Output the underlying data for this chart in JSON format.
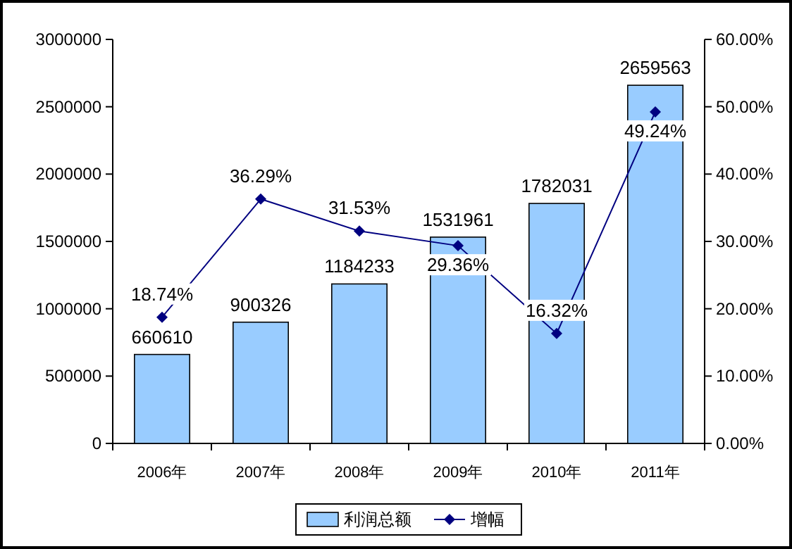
{
  "chart_data": {
    "type": "bar",
    "categories": [
      "2006年",
      "2007年",
      "2008年",
      "2009年",
      "2010年",
      "2011年"
    ],
    "series": [
      {
        "name": "利润总额",
        "color": "#99ccff",
        "values": [
          660610,
          900326,
          1184233,
          1531961,
          1782031,
          2659563
        ]
      },
      {
        "name": "增幅",
        "type": "line",
        "axis": "y2",
        "color": "#000080",
        "marker": "diamond",
        "values": [
          18.74,
          36.29,
          31.53,
          29.36,
          16.32,
          49.24
        ],
        "value_labels": [
          "18.74%",
          "36.29%",
          "31.53%",
          "29.36%",
          "16.32%",
          "49.24%"
        ]
      }
    ],
    "data_labels": true,
    "ylim": [
      0,
      3000000
    ],
    "yticks": [
      0,
      500000,
      1000000,
      1500000,
      2000000,
      2500000,
      3000000
    ],
    "y2lim": [
      0,
      60
    ],
    "y2ticks": [
      {
        "value": 0,
        "label": "0.00%"
      },
      {
        "value": 10,
        "label": "10.00%"
      },
      {
        "value": 20,
        "label": "20.00%"
      },
      {
        "value": 30,
        "label": "30.00%"
      },
      {
        "value": 40,
        "label": "40.00%"
      },
      {
        "value": 50,
        "label": "50.00%"
      },
      {
        "value": 60,
        "label": "60.00%"
      }
    ],
    "legend": "bottom",
    "grid": false
  }
}
